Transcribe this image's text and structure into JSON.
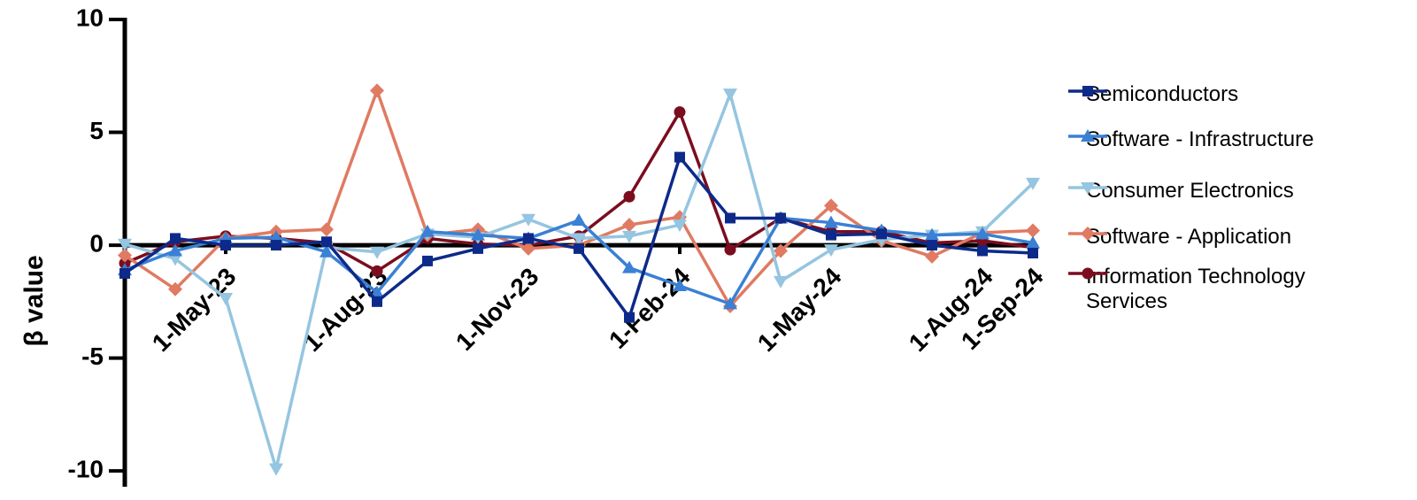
{
  "chart_data": {
    "type": "line",
    "y_label": "β value",
    "categories": [
      null,
      null,
      "1-May-23",
      null,
      null,
      "1-Aug-23",
      null,
      null,
      "1-Nov-23",
      null,
      null,
      "1-Feb-24",
      null,
      null,
      "1-May-24",
      null,
      null,
      "1-Aug-24",
      "1-Sep-24"
    ],
    "ylim": [
      -10.7,
      10
    ],
    "yticks": [
      10,
      5,
      0,
      -5,
      -10
    ],
    "legend": "right",
    "series": [
      {
        "name": "Semiconductors",
        "color": "#0d2a8a",
        "marker": "square",
        "values": [
          -1.25,
          0.3,
          0,
          0,
          0.15,
          -2.5,
          -0.7,
          -0.15,
          0.3,
          -0.15,
          -3.2,
          3.9,
          1.2,
          1.2,
          0.45,
          0.5,
          0,
          -0.25,
          -0.35
        ]
      },
      {
        "name": "Software - Infrastructure",
        "color": "#3a80d4",
        "marker": "triangle-up",
        "values": [
          -1.1,
          -0.25,
          0.3,
          0.35,
          -0.3,
          -2.1,
          0.6,
          0.45,
          0.3,
          1.1,
          -1.0,
          -1.8,
          -2.6,
          1.2,
          1.0,
          0.65,
          0.45,
          0.5,
          0.1
        ]
      },
      {
        "name": "Consumer Electronics",
        "color": "#95c5e0",
        "marker": "triangle-down",
        "values": [
          0.05,
          -0.6,
          -2.35,
          -9.9,
          -0.1,
          -0.3,
          0.5,
          0.35,
          1.15,
          0.3,
          0.4,
          0.9,
          6.7,
          -1.6,
          -0.2,
          0.25,
          0.45,
          0.6,
          2.75
        ]
      },
      {
        "name": "Software - Application",
        "color": "#e07a62",
        "marker": "diamond",
        "values": [
          -0.45,
          -1.95,
          0.3,
          0.6,
          0.7,
          6.85,
          0.45,
          0.7,
          -0.15,
          0,
          0.9,
          1.25,
          -2.7,
          -0.25,
          1.75,
          0.2,
          -0.5,
          0.55,
          0.65
        ]
      },
      {
        "name": "Information Technology Services",
        "color": "#7b0d1e",
        "marker": "circle",
        "values": [
          -0.8,
          0.15,
          0.4,
          0.3,
          0.1,
          -1.15,
          0.3,
          0.05,
          0,
          0.4,
          2.15,
          5.9,
          -0.2,
          1.2,
          0.6,
          0.6,
          0.1,
          0.2,
          -0.1
        ]
      }
    ]
  }
}
